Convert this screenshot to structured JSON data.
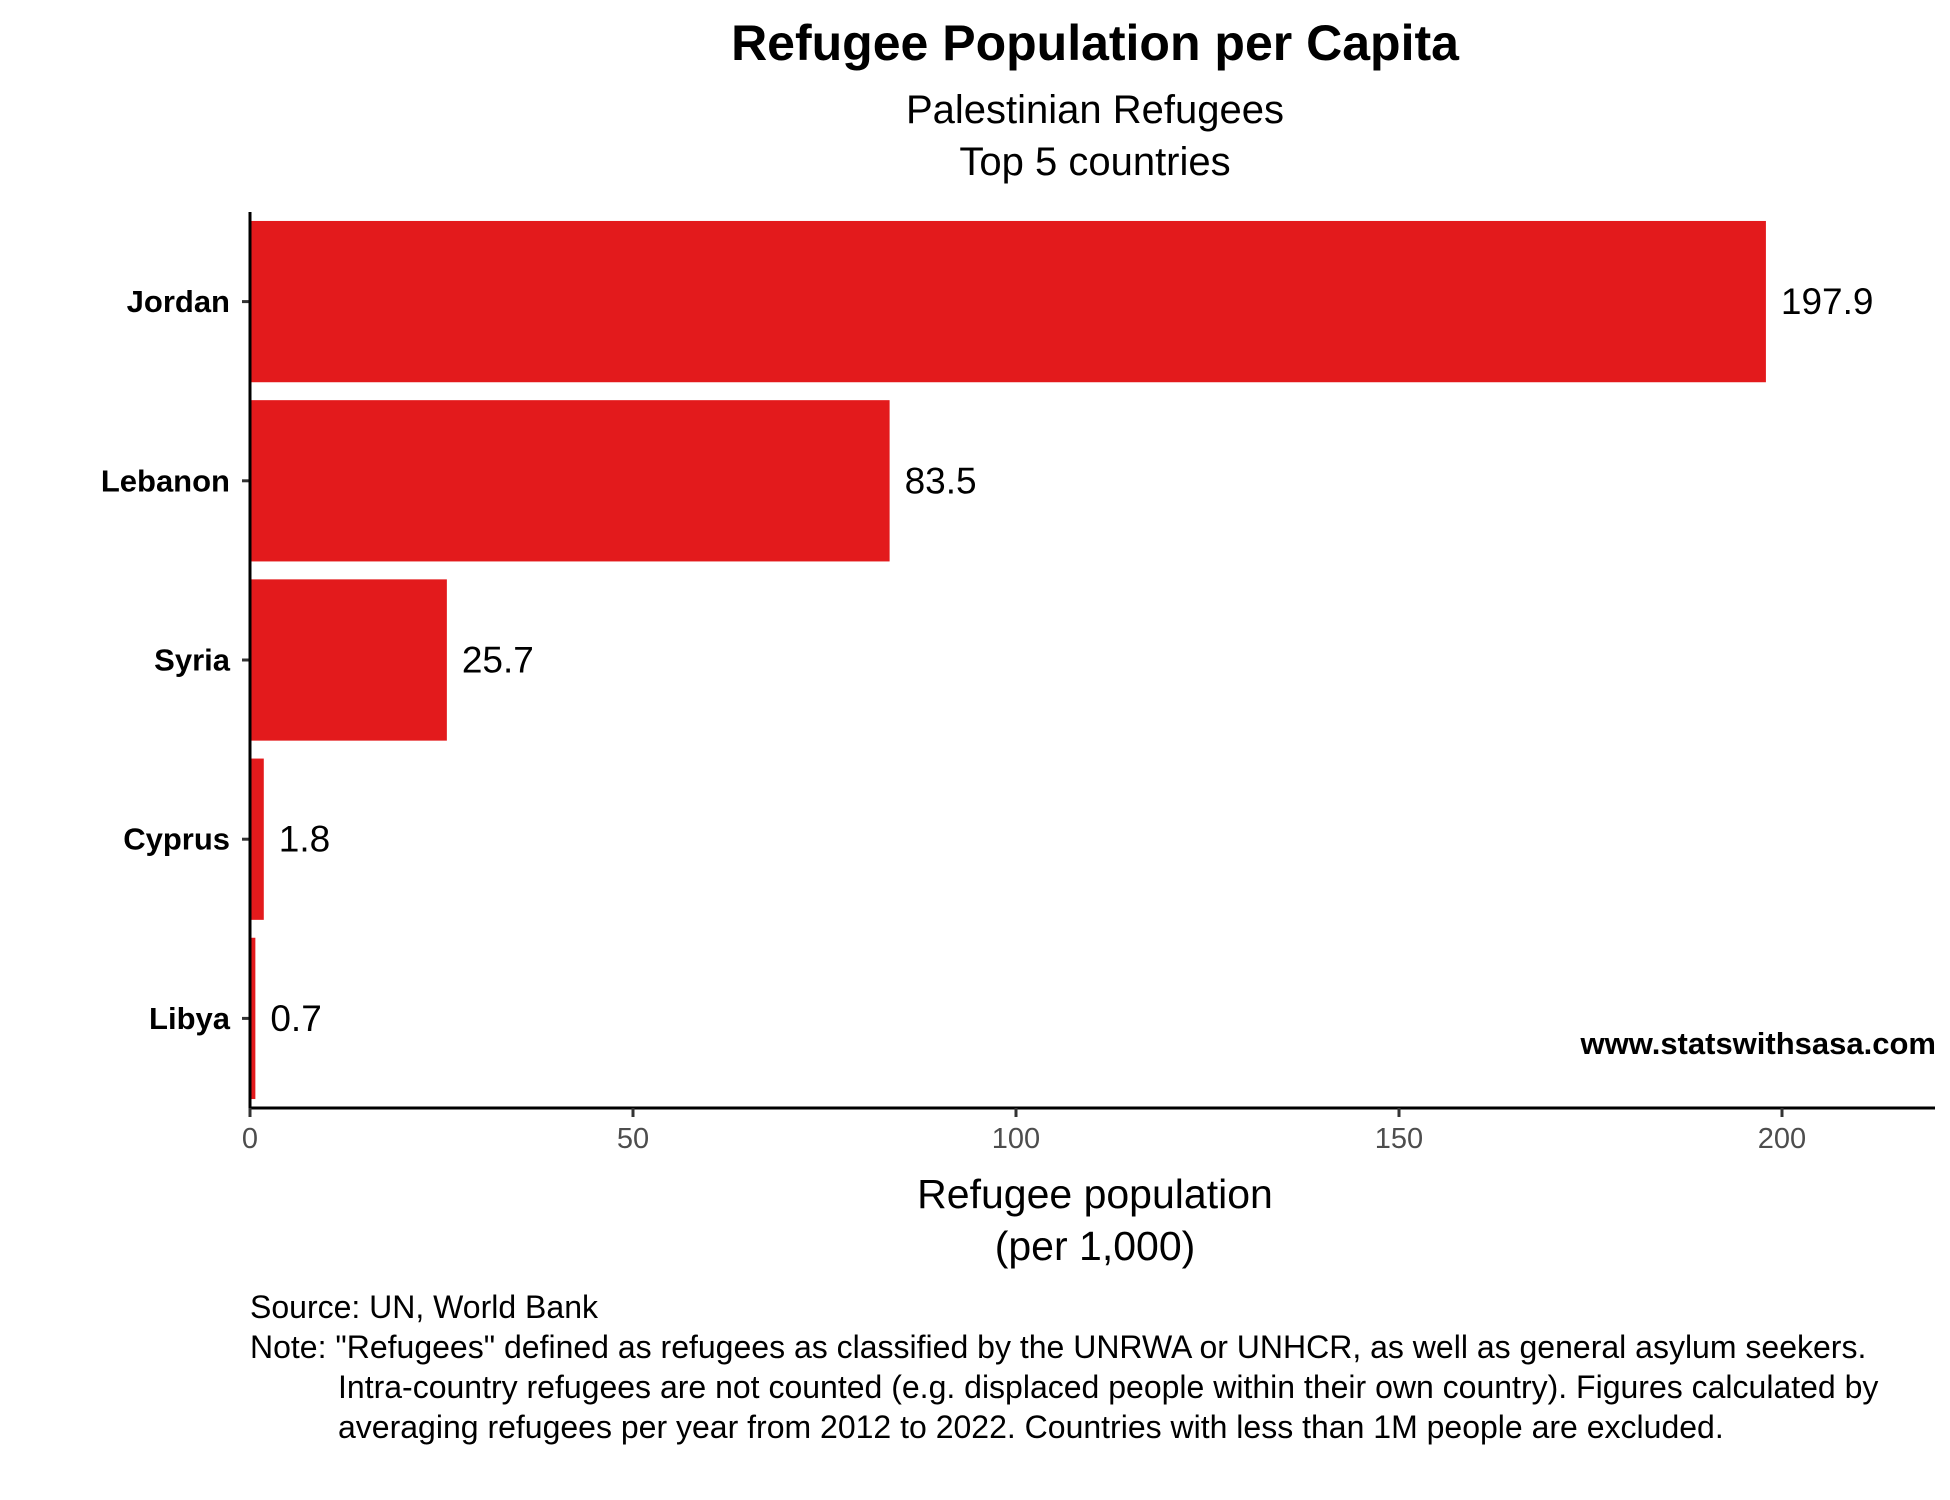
{
  "chart_data": {
    "type": "bar",
    "orientation": "horizontal",
    "title": "Refugee Population per Capita",
    "subtitle": [
      "Palestinian Refugees",
      "Top 5 countries"
    ],
    "categories": [
      "Jordan",
      "Lebanon",
      "Syria",
      "Cyprus",
      "Libya"
    ],
    "values": [
      197.9,
      83.5,
      25.7,
      1.8,
      0.7
    ],
    "value_labels": [
      "197.9",
      "83.5",
      "25.7",
      "1.8",
      "0.7"
    ],
    "xlabel": [
      "Refugee population",
      "(per 1,000)"
    ],
    "ylabel": "",
    "xticks": [
      0,
      50,
      100,
      150,
      200
    ],
    "xlim": [
      0,
      220
    ],
    "grid": false,
    "bar_color": "#e31a1c"
  },
  "watermark": "www.statswithsasa.com",
  "caption": {
    "source": "Source: UN, World Bank",
    "note": "Note: \"Refugees\" defined as refugees as classified by the UNRWA or UNHCR, as well as general asylum seekers. Intra-country refugees are not counted (e.g. displaced people within their own country). Figures calculated by averaging refugees per year from 2012 to 2022. Countries with less than 1M people are excluded."
  }
}
